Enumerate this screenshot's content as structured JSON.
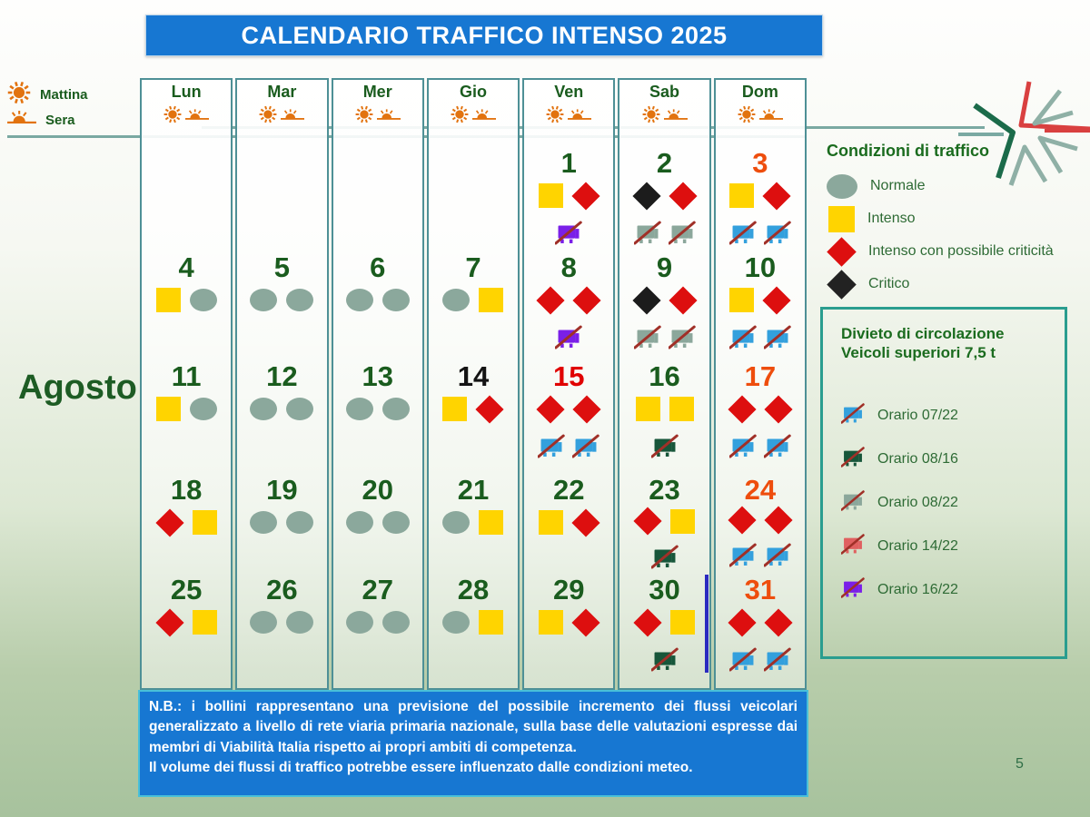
{
  "title": "CALENDARIO TRAFFICO INTENSO 2025",
  "month": "Agosto",
  "page_number": "5",
  "time_legend": {
    "morning": "Mattina",
    "evening": "Sera"
  },
  "weekdays": [
    "Lun",
    "Mar",
    "Mer",
    "Gio",
    "Ven",
    "Sab",
    "Dom"
  ],
  "traffic_legend": {
    "title": "Condizioni di traffico",
    "items": [
      {
        "symbol": "circle",
        "color": "#8ba89c",
        "label": "Normale"
      },
      {
        "symbol": "square",
        "color": "#ffd400",
        "label": "Intenso"
      },
      {
        "symbol": "diamond",
        "color": "#dd0f0f",
        "label": "Intenso con possibile criticità"
      },
      {
        "symbol": "diamond",
        "color": "#222222",
        "label": "Critico"
      }
    ]
  },
  "ban_legend": {
    "title_line1": "Divieto di circolazione",
    "title_line2": "Veicoli superiori 7,5 t",
    "items": [
      {
        "truck": "blue",
        "label": "Orario 07/22"
      },
      {
        "truck": "darkgreen",
        "label": "Orario 08/16"
      },
      {
        "truck": "sage",
        "label": "Orario 08/22"
      },
      {
        "truck": "salmon",
        "label": "Orario 14/22"
      },
      {
        "truck": "purple",
        "label": "Orario 16/22"
      }
    ]
  },
  "symbol_colors": {
    "circle": "#8ba89c",
    "square": "#ffd400",
    "diamond_red": "#dd0f0f",
    "diamond_black": "#1c1c1c"
  },
  "truck_colors": {
    "blue": "#33a0dd",
    "darkgreen": "#17563a",
    "sage": "#8ba79b",
    "salmon": "#e06060",
    "purple": "#7a1fe8"
  },
  "num_colors": {
    "green": "#1a5c1e",
    "black": "#141414",
    "red": "#e00000",
    "orange": "#ee4d0d"
  },
  "calendar": {
    "weeks": [
      [
        null,
        null,
        null,
        null,
        {
          "day": "1",
          "num_color": "green",
          "symbols": [
            "square",
            "diamond_red"
          ],
          "trucks": [
            "purple"
          ]
        },
        {
          "day": "2",
          "num_color": "green",
          "symbols": [
            "diamond_black",
            "diamond_red"
          ],
          "trucks": [
            "sage",
            "sage"
          ]
        },
        {
          "day": "3",
          "num_color": "orange",
          "symbols": [
            "square",
            "diamond_red"
          ],
          "trucks": [
            "blue",
            "blue"
          ]
        }
      ],
      [
        {
          "day": "4",
          "num_color": "green",
          "symbols": [
            "square",
            "circle"
          ],
          "trucks": []
        },
        {
          "day": "5",
          "num_color": "green",
          "symbols": [
            "circle",
            "circle"
          ],
          "trucks": []
        },
        {
          "day": "6",
          "num_color": "green",
          "symbols": [
            "circle",
            "circle"
          ],
          "trucks": []
        },
        {
          "day": "7",
          "num_color": "green",
          "symbols": [
            "circle",
            "square"
          ],
          "trucks": []
        },
        {
          "day": "8",
          "num_color": "green",
          "symbols": [
            "diamond_red",
            "diamond_red"
          ],
          "trucks": [
            "purple"
          ]
        },
        {
          "day": "9",
          "num_color": "green",
          "symbols": [
            "diamond_black",
            "diamond_red"
          ],
          "trucks": [
            "sage",
            "sage"
          ]
        },
        {
          "day": "10",
          "num_color": "green",
          "symbols": [
            "square",
            "diamond_red"
          ],
          "trucks": [
            "blue",
            "blue"
          ]
        }
      ],
      [
        {
          "day": "11",
          "num_color": "green",
          "symbols": [
            "square",
            "circle"
          ],
          "trucks": []
        },
        {
          "day": "12",
          "num_color": "green",
          "symbols": [
            "circle",
            "circle"
          ],
          "trucks": []
        },
        {
          "day": "13",
          "num_color": "green",
          "symbols": [
            "circle",
            "circle"
          ],
          "trucks": []
        },
        {
          "day": "14",
          "num_color": "black",
          "symbols": [
            "square",
            "diamond_red"
          ],
          "trucks": []
        },
        {
          "day": "15",
          "num_color": "red",
          "symbols": [
            "diamond_red",
            "diamond_red"
          ],
          "trucks": [
            "blue",
            "blue"
          ]
        },
        {
          "day": "16",
          "num_color": "green",
          "symbols": [
            "square",
            "square"
          ],
          "trucks": [
            "darkgreen"
          ]
        },
        {
          "day": "17",
          "num_color": "orange",
          "symbols": [
            "diamond_red",
            "diamond_red"
          ],
          "trucks": [
            "blue",
            "blue"
          ]
        }
      ],
      [
        {
          "day": "18",
          "num_color": "green",
          "symbols": [
            "diamond_red",
            "square"
          ],
          "trucks": []
        },
        {
          "day": "19",
          "num_color": "green",
          "symbols": [
            "circle",
            "circle"
          ],
          "trucks": []
        },
        {
          "day": "20",
          "num_color": "green",
          "symbols": [
            "circle",
            "circle"
          ],
          "trucks": []
        },
        {
          "day": "21",
          "num_color": "green",
          "symbols": [
            "circle",
            "square"
          ],
          "trucks": []
        },
        {
          "day": "22",
          "num_color": "green",
          "symbols": [
            "square",
            "diamond_red"
          ],
          "trucks": []
        },
        {
          "day": "23",
          "num_color": "green",
          "symbols": [
            "diamond_red",
            "square"
          ],
          "trucks": [
            "darkgreen"
          ]
        },
        {
          "day": "24",
          "num_color": "orange",
          "symbols": [
            "diamond_red",
            "diamond_red"
          ],
          "trucks": [
            "blue",
            "blue"
          ]
        }
      ],
      [
        {
          "day": "25",
          "num_color": "green",
          "symbols": [
            "diamond_red",
            "square"
          ],
          "trucks": []
        },
        {
          "day": "26",
          "num_color": "green",
          "symbols": [
            "circle",
            "circle"
          ],
          "trucks": []
        },
        {
          "day": "27",
          "num_color": "green",
          "symbols": [
            "circle",
            "circle"
          ],
          "trucks": []
        },
        {
          "day": "28",
          "num_color": "green",
          "symbols": [
            "circle",
            "square"
          ],
          "trucks": []
        },
        {
          "day": "29",
          "num_color": "green",
          "symbols": [
            "square",
            "diamond_red"
          ],
          "trucks": []
        },
        {
          "day": "30",
          "num_color": "green",
          "symbols": [
            "diamond_red",
            "square"
          ],
          "trucks": [
            "darkgreen"
          ]
        },
        {
          "day": "31",
          "num_color": "orange",
          "symbols": [
            "diamond_red",
            "diamond_red"
          ],
          "trucks": [
            "blue",
            "blue"
          ]
        }
      ]
    ]
  },
  "note": {
    "paragraphs": [
      "N.B.: i bollini rappresentano una previsione del possibile incremento dei flussi veicolari generalizzato a livello di rete viaria primaria nazionale, sulla base delle valutazioni espresse dai membri di Viabilità Italia rispetto ai propri ambiti di competenza.",
      "Il volume dei flussi di traffico potrebbe essere influenzato dalle condizioni meteo."
    ]
  }
}
